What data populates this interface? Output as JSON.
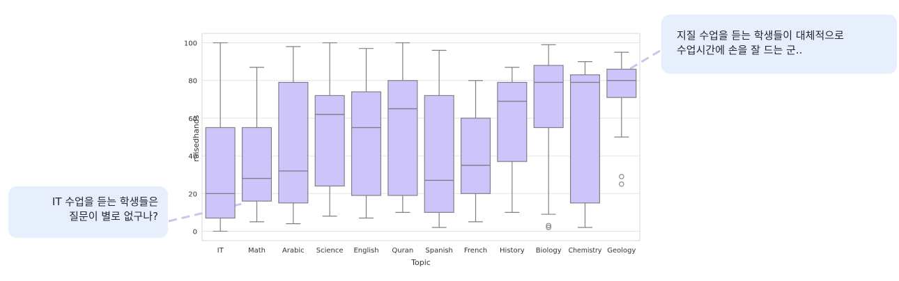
{
  "chart_data": {
    "type": "boxplot",
    "xlabel": "Topic",
    "ylabel": "raisedhands",
    "ylim": [
      -5,
      105
    ],
    "yticks": [
      0,
      20,
      40,
      60,
      80,
      100
    ],
    "grid": "horizontal",
    "colors": {
      "box_fill": "#cdc5f9",
      "box_line": "#7f7f8a",
      "grid": "#e4e4e4",
      "frame": "#d9d9d9"
    },
    "categories": [
      "IT",
      "Math",
      "Arabic",
      "Science",
      "English",
      "Quran",
      "Spanish",
      "French",
      "History",
      "Biology",
      "Chemistry",
      "Geology"
    ],
    "boxes": [
      {
        "category": "IT",
        "whisker_low": 0,
        "q1": 7,
        "median": 20,
        "q3": 55,
        "whisker_high": 100,
        "outliers": []
      },
      {
        "category": "Math",
        "whisker_low": 5,
        "q1": 16,
        "median": 28,
        "q3": 55,
        "whisker_high": 87,
        "outliers": []
      },
      {
        "category": "Arabic",
        "whisker_low": 4,
        "q1": 15,
        "median": 32,
        "q3": 79,
        "whisker_high": 98,
        "outliers": []
      },
      {
        "category": "Science",
        "whisker_low": 8,
        "q1": 24,
        "median": 62,
        "q3": 72,
        "whisker_high": 100,
        "outliers": []
      },
      {
        "category": "English",
        "whisker_low": 7,
        "q1": 19,
        "median": 55,
        "q3": 74,
        "whisker_high": 97,
        "outliers": []
      },
      {
        "category": "Quran",
        "whisker_low": 10,
        "q1": 19,
        "median": 65,
        "q3": 80,
        "whisker_high": 100,
        "outliers": []
      },
      {
        "category": "Spanish",
        "whisker_low": 2,
        "q1": 10,
        "median": 27,
        "q3": 72,
        "whisker_high": 96,
        "outliers": []
      },
      {
        "category": "French",
        "whisker_low": 5,
        "q1": 20,
        "median": 35,
        "q3": 60,
        "whisker_high": 80,
        "outliers": []
      },
      {
        "category": "History",
        "whisker_low": 10,
        "q1": 37,
        "median": 69,
        "q3": 79,
        "whisker_high": 87,
        "outliers": []
      },
      {
        "category": "Biology",
        "whisker_low": 9,
        "q1": 55,
        "median": 79,
        "q3": 88,
        "whisker_high": 99,
        "outliers": [
          2,
          3
        ]
      },
      {
        "category": "Chemistry",
        "whisker_low": 2,
        "q1": 15,
        "median": 79,
        "q3": 83,
        "whisker_high": 90,
        "outliers": []
      },
      {
        "category": "Geology",
        "whisker_low": 50,
        "q1": 71,
        "median": 80,
        "q3": 86,
        "whisker_high": 95,
        "outliers": [
          25,
          29
        ]
      }
    ]
  },
  "callouts": {
    "left": {
      "lines": [
        "IT 수업을 듣는 학생들은",
        "질문이 별로 없구나?"
      ]
    },
    "right": {
      "lines": [
        "지질 수업을 듣는 학생들이 대체적으로",
        "수업시간에 손을 잘 드는 군.."
      ]
    }
  }
}
